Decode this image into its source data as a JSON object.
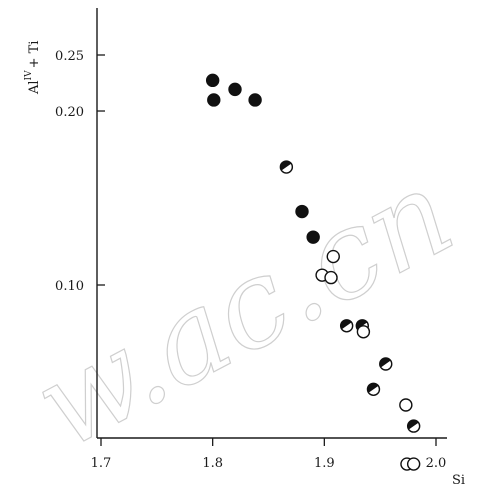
{
  "watermark": "w.ac.cn",
  "chart_data": {
    "type": "scatter",
    "title": "",
    "xlabel": "Si",
    "ylabel": "Al^IV + Ti",
    "ylabel_base": "Al",
    "ylabel_sup": "IV",
    "ylabel_rest": "+ Ti",
    "x_ticks": [
      "1.7",
      "1.8",
      "1.9",
      "2.0"
    ],
    "y_ticks": [
      "0.10",
      "0.20",
      "0.25"
    ],
    "ylim": [
      0.038,
      0.31
    ],
    "xlim": [
      1.7,
      2.0
    ],
    "yscale": "log",
    "grid": false,
    "series": [
      {
        "marker": "filled",
        "points": [
          {
            "x": 1.8,
            "y": 0.226
          },
          {
            "x": 1.801,
            "y": 0.209
          },
          {
            "x": 1.82,
            "y": 0.218
          },
          {
            "x": 1.838,
            "y": 0.209
          },
          {
            "x": 1.88,
            "y": 0.134
          },
          {
            "x": 1.89,
            "y": 0.121
          }
        ]
      },
      {
        "marker": "half-filled",
        "points": [
          {
            "x": 1.866,
            "y": 0.16
          },
          {
            "x": 1.92,
            "y": 0.085
          },
          {
            "x": 1.934,
            "y": 0.085
          },
          {
            "x": 1.944,
            "y": 0.066
          },
          {
            "x": 1.955,
            "y": 0.073
          },
          {
            "x": 1.98,
            "y": 0.057
          }
        ]
      },
      {
        "marker": "open",
        "points": [
          {
            "x": 1.898,
            "y": 0.104
          },
          {
            "x": 1.906,
            "y": 0.103
          },
          {
            "x": 1.908,
            "y": 0.112
          },
          {
            "x": 1.935,
            "y": 0.083
          },
          {
            "x": 1.973,
            "y": 0.062
          },
          {
            "x": 1.974,
            "y": 0.049
          },
          {
            "x": 1.98,
            "y": 0.049
          }
        ]
      }
    ]
  }
}
